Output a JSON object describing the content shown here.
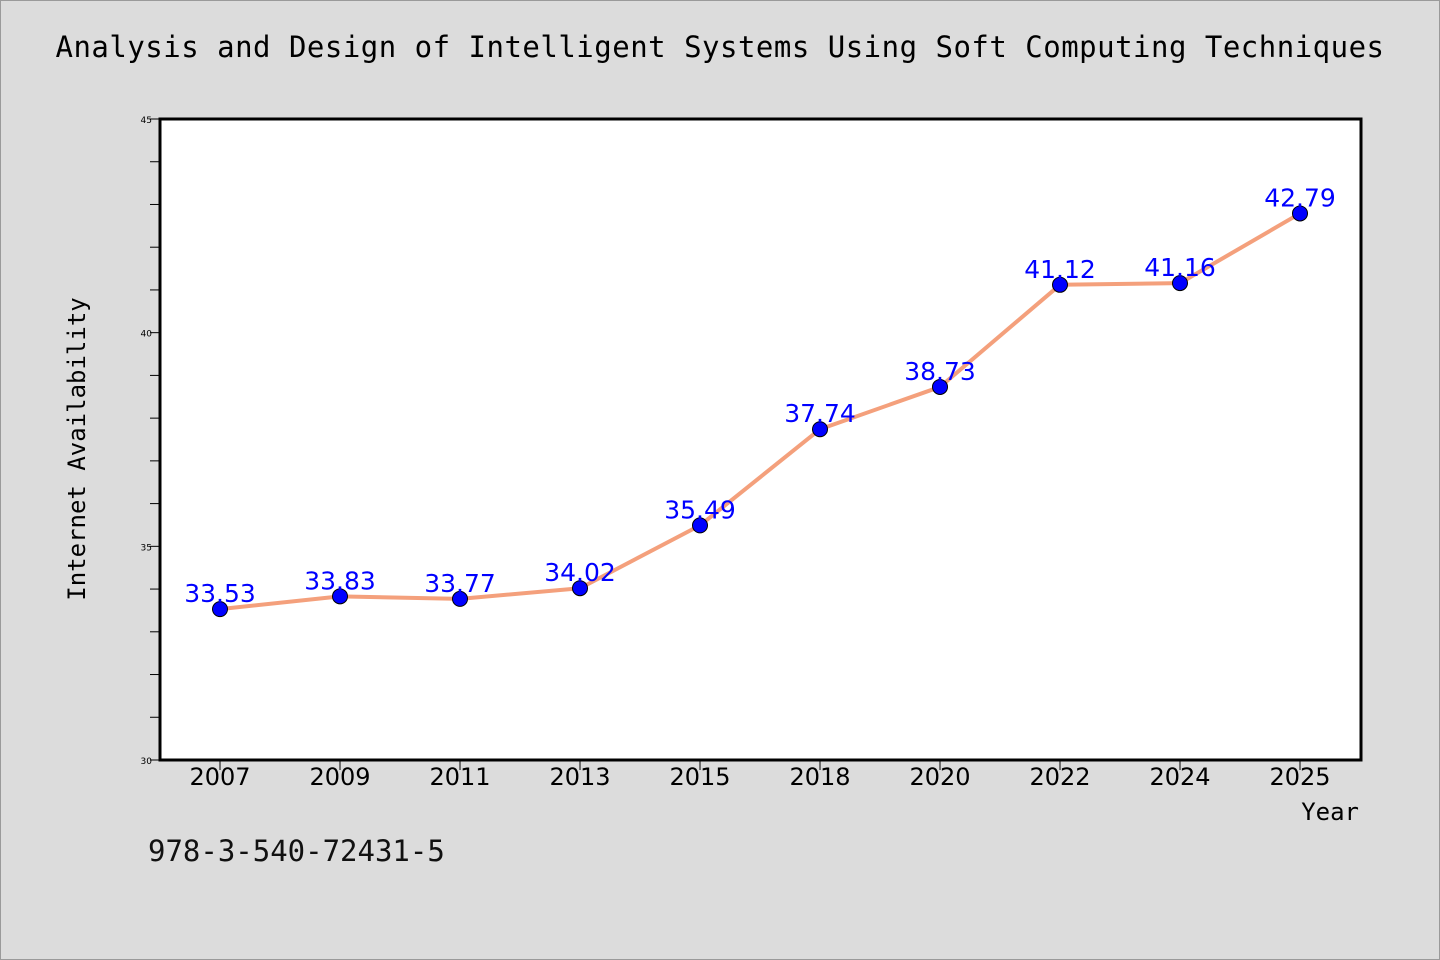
{
  "title": "Analysis and Design of Intelligent Systems Using Soft Computing Techniques",
  "footer_text": "978-3-540-72431-5",
  "colors": {
    "background": "#dcdcdc",
    "plot_background": "#ffffff",
    "line": "#f4a07c",
    "marker": "#0000ff",
    "data_label": "#0000ff"
  },
  "chart_data": {
    "type": "line",
    "categories": [
      "2007",
      "2009",
      "2011",
      "2013",
      "2015",
      "2018",
      "2020",
      "2022",
      "2024",
      "2025"
    ],
    "series": [
      {
        "values": [
          33.53,
          33.83,
          33.77,
          34.02,
          35.49,
          37.74,
          38.73,
          41.12,
          41.16,
          42.79
        ]
      }
    ],
    "data_labels": [
      "33.53",
      "33.83",
      "33.77",
      "34.02",
      "35.49",
      "37.74",
      "38.73",
      "41.12",
      "41.16",
      "42.79"
    ],
    "xlabel": "Year",
    "ylabel": "Internet Availability",
    "ylim": [
      30,
      45
    ],
    "yticks": [
      30,
      35,
      40,
      45
    ],
    "y_minor_step": 1,
    "grid": false,
    "legend": "none"
  }
}
